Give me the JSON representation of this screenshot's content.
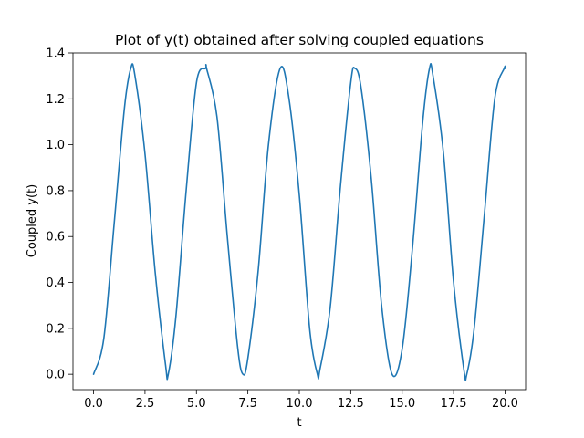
{
  "chart_data": {
    "type": "line",
    "title": "Plot of y(t) obtained after solving coupled equations",
    "xlabel": "t",
    "ylabel": "Coupled y(t)",
    "xlim": [
      -1.0,
      21.0
    ],
    "ylim": [
      -0.067,
      1.4
    ],
    "xticks": [
      0.0,
      2.5,
      5.0,
      7.5,
      10.0,
      12.5,
      15.0,
      17.5,
      20.0
    ],
    "xtick_labels": [
      "0.0",
      "2.5",
      "5.0",
      "7.5",
      "10.0",
      "12.5",
      "15.0",
      "17.5",
      "20.0"
    ],
    "yticks": [
      0.0,
      0.2,
      0.4,
      0.6,
      0.8,
      1.0,
      1.2,
      1.4
    ],
    "ytick_labels": [
      "0.0",
      "0.2",
      "0.4",
      "0.6",
      "0.8",
      "1.0",
      "1.2",
      "1.4"
    ],
    "grid": false,
    "series": [
      {
        "color": "#1f77b4",
        "x": [
          0.0,
          0.5,
          1.0,
          1.5,
          1.81,
          2.0,
          2.5,
          3.0,
          3.5,
          3.63,
          4.0,
          4.5,
          5.0,
          5.44,
          5.5,
          6.0,
          6.5,
          7.0,
          7.26,
          7.5,
          8.0,
          8.5,
          9.07,
          9.5,
          10.0,
          10.5,
          10.88,
          11.0,
          11.5,
          12.0,
          12.5,
          12.7,
          13.0,
          13.5,
          14.0,
          14.51,
          15.0,
          15.5,
          16.0,
          16.33,
          16.5,
          17.0,
          17.5,
          18.0,
          18.14,
          18.5,
          19.0,
          19.5,
          19.96,
          20.0
        ],
        "y": [
          0.0,
          0.157,
          0.655,
          1.16,
          1.333,
          1.307,
          0.96,
          0.44,
          0.04,
          0.0,
          0.25,
          0.8,
          1.27,
          1.333,
          1.33,
          1.12,
          0.6,
          0.12,
          0.0,
          0.07,
          0.45,
          1.0,
          1.333,
          1.2,
          0.78,
          0.2,
          0.0,
          0.02,
          0.29,
          0.82,
          1.27,
          1.333,
          1.25,
          0.85,
          0.3,
          0.0,
          0.11,
          0.55,
          1.1,
          1.333,
          1.3,
          0.97,
          0.4,
          0.02,
          0.0,
          0.2,
          0.7,
          1.2,
          1.333,
          1.332
        ]
      }
    ]
  }
}
